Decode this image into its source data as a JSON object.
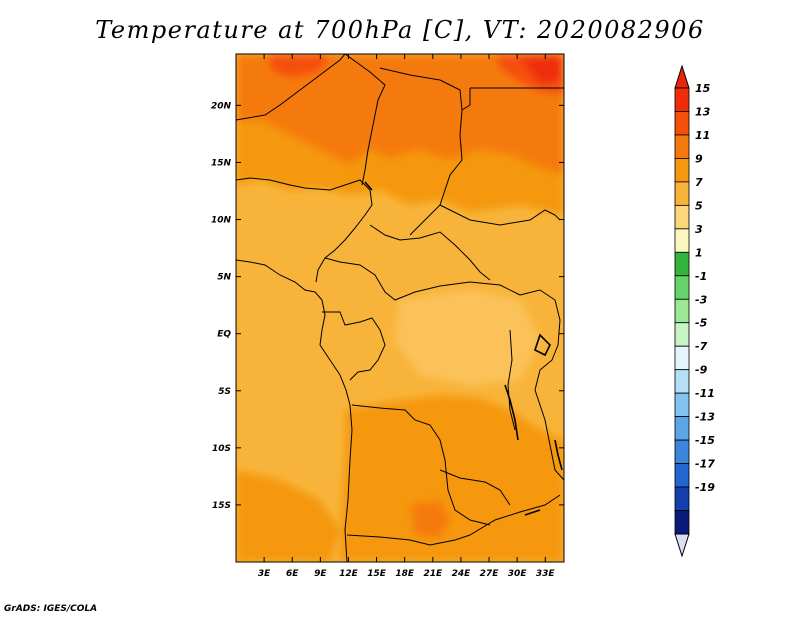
{
  "title": "Temperature at 700hPa [C], VT: 2020082906",
  "credit": "GrADS: IGES/COLA",
  "map": {
    "lat_ticks": [
      "20N",
      "15N",
      "10N",
      "5N",
      "EQ",
      "5S",
      "10S",
      "15S"
    ],
    "lon_ticks": [
      "3E",
      "6E",
      "9E",
      "12E",
      "15E",
      "18E",
      "21E",
      "24E",
      "27E",
      "30E",
      "33E"
    ],
    "extent": {
      "lon_min": 0,
      "lon_max": 35,
      "lat_min": -20,
      "lat_max": 24.5
    }
  },
  "colorbar": {
    "labels": [
      "15",
      "13",
      "11",
      "9",
      "7",
      "5",
      "3",
      "1",
      "-1",
      "-3",
      "-5",
      "-7",
      "-9",
      "-11",
      "-13",
      "-15",
      "-17",
      "-19"
    ],
    "colors": [
      "#ef2d08",
      "#f5500a",
      "#f57a0e",
      "#f59810",
      "#f8b43a",
      "#fbd67a",
      "#fcf6c0",
      "#33b43e",
      "#66d46a",
      "#9ae894",
      "#c8f3c2",
      "#e4f6fb",
      "#b4dff7",
      "#84c3ef",
      "#5aa6e9",
      "#3b86dd",
      "#2266cf",
      "#1340ad",
      "#0a1a7a"
    ],
    "under_color": "#dcdcf5",
    "over_color": "#e8260a"
  },
  "colors": {
    "field_base": "#f8b43a",
    "field_warm": "#f59810",
    "field_hot": "#f57a0e",
    "field_hotter": "#f5500a",
    "field_hottest": "#ef2d08",
    "border": "#000000"
  }
}
